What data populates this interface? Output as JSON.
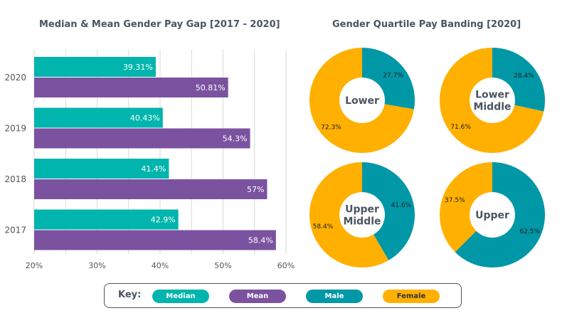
{
  "colors": {
    "median": "#00b5ad",
    "mean": "#7b52a0",
    "male": "#0097a7",
    "female": "#ffb000",
    "text": "#4a5560",
    "grid": "#d9d9d9"
  },
  "chart_data": [
    {
      "type": "bar",
      "orientation": "horizontal",
      "title": "Median & Mean Gender Pay Gap [2017 - 2020]",
      "categories": [
        "2020",
        "2019",
        "2018",
        "2017"
      ],
      "series": [
        {
          "name": "Median",
          "values": [
            39.31,
            40.43,
            41.4,
            42.9
          ],
          "labels": [
            "39.31%",
            "40.43%",
            "41.4%",
            "42.9%"
          ]
        },
        {
          "name": "Mean",
          "values": [
            50.81,
            54.3,
            57,
            58.4
          ],
          "labels": [
            "50.81%",
            "54.3%",
            "57%",
            "58.4%"
          ]
        }
      ],
      "xlim": [
        20,
        60
      ],
      "xticks": [
        20,
        30,
        40,
        50,
        60
      ],
      "xtick_labels": [
        "20%",
        "30%",
        "40%",
        "50%",
        "60%"
      ],
      "grid": true,
      "xlabel": "",
      "ylabel": ""
    },
    {
      "type": "pie",
      "style": "donut",
      "title": "Gender Quartile Pay Banding [2020]",
      "charts": [
        {
          "name": "Lower",
          "label_lines": [
            "Lower"
          ],
          "slices": [
            {
              "name": "Male",
              "value": 27.7,
              "label": "27.7%"
            },
            {
              "name": "Female",
              "value": 72.3,
              "label": "72.3%"
            }
          ]
        },
        {
          "name": "Lower Middle",
          "label_lines": [
            "Lower",
            "Middle"
          ],
          "slices": [
            {
              "name": "Male",
              "value": 28.4,
              "label": "28.4%"
            },
            {
              "name": "Female",
              "value": 71.6,
              "label": "71.6%"
            }
          ]
        },
        {
          "name": "Upper Middle",
          "label_lines": [
            "Upper",
            "Middle"
          ],
          "slices": [
            {
              "name": "Male",
              "value": 41.6,
              "label": "41.6%"
            },
            {
              "name": "Female",
              "value": 58.4,
              "label": "58.4%"
            }
          ]
        },
        {
          "name": "Upper",
          "label_lines": [
            "Upper"
          ],
          "slices": [
            {
              "name": "Male",
              "value": 62.5,
              "label": "62.5%"
            },
            {
              "name": "Female",
              "value": 37.5,
              "label": "37.5%"
            }
          ]
        }
      ]
    }
  ],
  "titles": {
    "bar": "Median & Mean Gender Pay Gap [2017 - 2020]",
    "donut": "Gender Quartile Pay Banding [2020]"
  },
  "key": {
    "label": "Key:",
    "items": [
      "Median",
      "Mean",
      "Male",
      "Female"
    ]
  }
}
